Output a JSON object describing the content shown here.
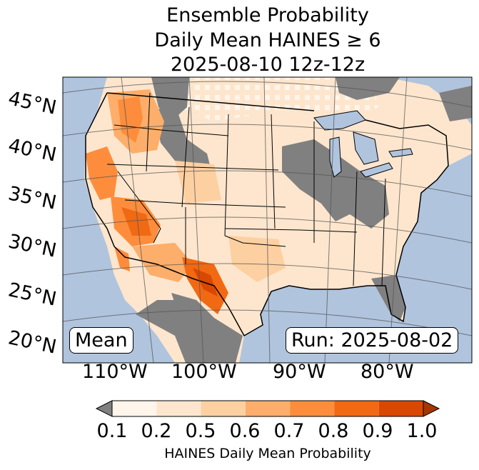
{
  "title": {
    "line1": "Ensemble Probability",
    "line2": "Daily Mean HAINES ≥ 6",
    "line3": "2025-08-10 12z-12z"
  },
  "map": {
    "latitude_labels": [
      "45°N",
      "40°N",
      "35°N",
      "30°N",
      "25°N",
      "20°N"
    ],
    "longitude_labels": [
      "110°W",
      "100°W",
      "90°W",
      "80°W"
    ],
    "statistic_label": "Mean",
    "run_label": "Run: 2025-08-02",
    "ocean_color": "#b0c4de",
    "missing_color": "#808080"
  },
  "colorbar": {
    "ticks": [
      "0.1",
      "0.2",
      "0.5",
      "0.6",
      "0.7",
      "0.8",
      "0.9",
      "1.0"
    ],
    "label": "HAINES Daily Mean Probability",
    "colors": [
      "#fff5eb",
      "#fee6ce",
      "#fdd0a2",
      "#fdae6b",
      "#fd8d3c",
      "#f16913",
      "#d94801",
      "#a63603"
    ],
    "under_color": "#808080"
  }
}
